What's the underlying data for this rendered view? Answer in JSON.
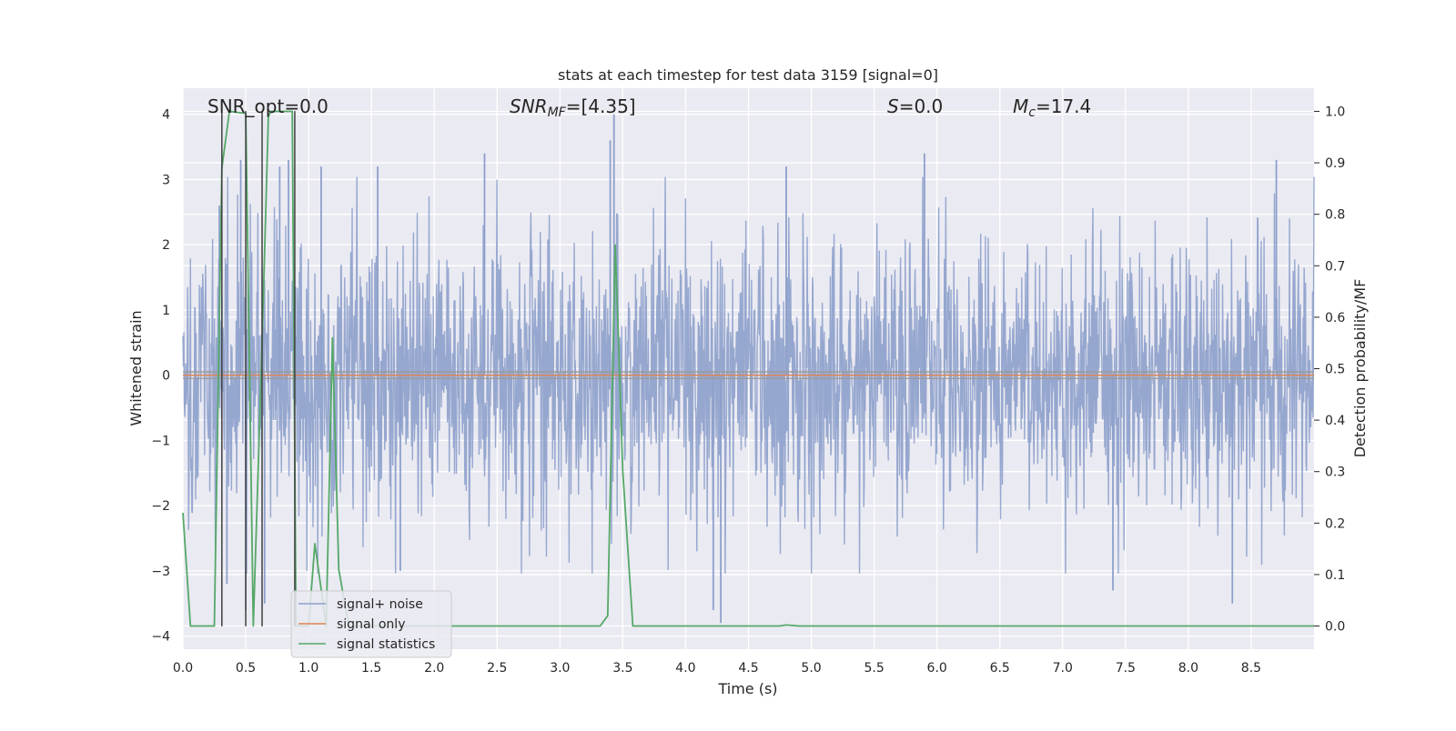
{
  "chart_data": {
    "type": "line",
    "title": "stats at each timestep for test data 3159 [signal=0]",
    "xlabel": "Time (s)",
    "ylabel": "Whitened strain",
    "y2label": "Detection probability/MF",
    "xlim": [
      0.0,
      9.0
    ],
    "ylim": [
      -4.2,
      4.4
    ],
    "y2lim": [
      -0.045,
      1.045
    ],
    "x_ticks": [
      0.0,
      0.5,
      1.0,
      1.5,
      2.0,
      2.5,
      3.0,
      3.5,
      4.0,
      4.5,
      5.0,
      5.5,
      6.0,
      6.5,
      7.0,
      7.5,
      8.0,
      8.5
    ],
    "x_tick_labels": [
      "0.0",
      "0.5",
      "1.0",
      "1.5",
      "2.0",
      "2.5",
      "3.0",
      "3.5",
      "4.0",
      "4.5",
      "5.0",
      "5.5",
      "6.0",
      "6.5",
      "7.0",
      "7.5",
      "8.0",
      "8.5"
    ],
    "y_ticks": [
      -4,
      -3,
      -2,
      -1,
      0,
      1,
      2,
      3,
      4
    ],
    "y_tick_labels": [
      "−4",
      "−3",
      "−2",
      "−1",
      "0",
      "1",
      "2",
      "3",
      "4"
    ],
    "y2_ticks": [
      0.0,
      0.1,
      0.2,
      0.3,
      0.4,
      0.5,
      0.6,
      0.7,
      0.8,
      0.9,
      1.0
    ],
    "y2_tick_labels": [
      "0.0",
      "0.1",
      "0.2",
      "0.3",
      "0.4",
      "0.5",
      "0.6",
      "0.7",
      "0.8",
      "0.9",
      "1.0"
    ],
    "grid": true,
    "legend_position": "lower-left",
    "annotations": {
      "snr_opt": "SNR_opt=0.0",
      "snr_mf_main": "SNR",
      "snr_mf_sub": "MF",
      "snr_mf_value": "=[4.35]",
      "s_symbol": "S",
      "s_value": "=0.0",
      "mc_main": "M",
      "mc_sub": "c",
      "mc_value": "=17.4"
    },
    "series": [
      {
        "name": "signal+ noise",
        "color": "#8da0cb",
        "axis": "left",
        "noise_envelope": {
          "typical_abs": 1.6,
          "max": 4.0,
          "min": -3.9,
          "tall_spikes": [
            {
              "x": 0.29,
              "y": 2.6
            },
            {
              "x": 0.35,
              "y": -3.2
            },
            {
              "x": 0.46,
              "y": 3.3
            },
            {
              "x": 0.5,
              "y": -3.6
            },
            {
              "x": 0.65,
              "y": -3.5
            },
            {
              "x": 0.77,
              "y": 3.2
            },
            {
              "x": 0.84,
              "y": 3.3
            },
            {
              "x": 1.1,
              "y": 3.2
            },
            {
              "x": 1.55,
              "y": 3.2
            },
            {
              "x": 1.73,
              "y": -3.0
            },
            {
              "x": 2.4,
              "y": 3.4
            },
            {
              "x": 3.4,
              "y": 3.6
            },
            {
              "x": 3.43,
              "y": 4.0
            },
            {
              "x": 4.22,
              "y": -3.6
            },
            {
              "x": 4.28,
              "y": -3.8
            },
            {
              "x": 4.8,
              "y": 3.2
            },
            {
              "x": 5.9,
              "y": 3.4
            },
            {
              "x": 7.4,
              "y": -3.3
            },
            {
              "x": 8.35,
              "y": -3.5
            },
            {
              "x": 8.7,
              "y": 3.3
            }
          ]
        }
      },
      {
        "name": "signal only",
        "color": "#dd8452",
        "axis": "left",
        "x": [
          0.0,
          9.0
        ],
        "y": [
          0.0,
          0.0
        ]
      },
      {
        "name": "signal statistics",
        "color": "#55a868",
        "axis": "right",
        "x": [
          0.0,
          0.06,
          0.25,
          0.31,
          0.37,
          0.5,
          0.56,
          0.63,
          0.68,
          0.7,
          0.87,
          0.9,
          1.0,
          1.05,
          1.14,
          1.19,
          1.24,
          1.32,
          1.38,
          2.0,
          3.32,
          3.38,
          3.44,
          3.5,
          3.58,
          3.62,
          4.0,
          4.75,
          4.8,
          4.9,
          5.5,
          9.0
        ],
        "y": [
          0.22,
          0.0,
          0.0,
          0.89,
          1.0,
          0.996,
          0.0,
          0.55,
          0.99,
          1.0,
          1.0,
          0.0,
          0.0,
          0.16,
          0.0,
          0.56,
          0.11,
          0.0,
          0.0,
          0.0,
          0.0,
          0.02,
          0.74,
          0.3,
          0.0,
          0.0,
          0.0,
          0.0,
          0.002,
          0.0,
          0.0,
          0.0
        ]
      }
    ],
    "vertical_lines": {
      "color": "#404040",
      "x": [
        0.31,
        0.5,
        0.63,
        0.89
      ],
      "top": 4.05,
      "bottom": -3.85
    },
    "extra_hlines": {
      "color": "#999999",
      "y": [
        0.05,
        -0.05
      ]
    }
  }
}
